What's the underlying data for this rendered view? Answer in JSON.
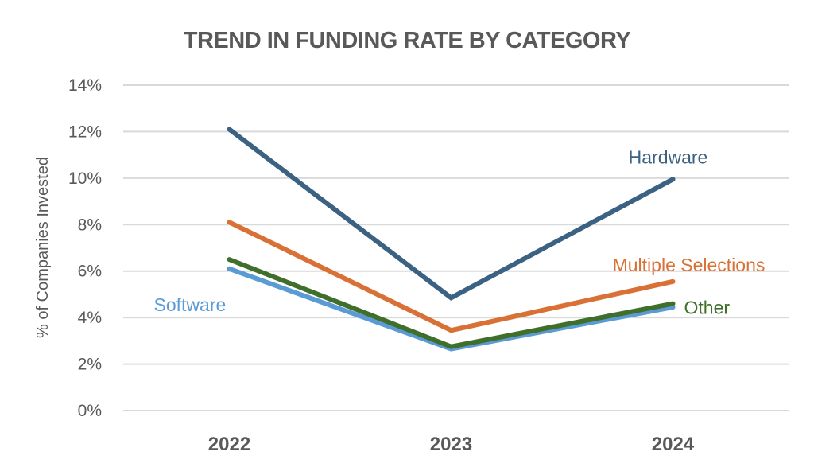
{
  "chart_data": {
    "type": "line",
    "title": "TREND IN FUNDING RATE BY CATEGORY",
    "xlabel": "",
    "ylabel": "% of Companies Invested",
    "categories": [
      "2022",
      "2023",
      "2024"
    ],
    "ylim": [
      0,
      14
    ],
    "yticks": [
      0,
      2,
      4,
      6,
      8,
      10,
      12,
      14
    ],
    "ytick_labels": [
      "0%",
      "2%",
      "4%",
      "6%",
      "8%",
      "10%",
      "12%",
      "14%"
    ],
    "grid": true,
    "legend": "none (inline series labels)",
    "series": [
      {
        "name": "Hardware",
        "color": "#3b6282",
        "values": [
          12.1,
          4.85,
          9.95
        ],
        "label_position": "above-right"
      },
      {
        "name": "Multiple Selections",
        "color": "#d97035",
        "values": [
          8.1,
          3.45,
          5.55
        ],
        "label_position": "above-right"
      },
      {
        "name": "Other",
        "color": "#3f6f2a",
        "values": [
          6.5,
          2.75,
          4.6
        ],
        "label_position": "right"
      },
      {
        "name": "Software",
        "color": "#5b9bd5",
        "values": [
          6.1,
          2.65,
          4.45
        ],
        "label_position": "left"
      }
    ]
  }
}
